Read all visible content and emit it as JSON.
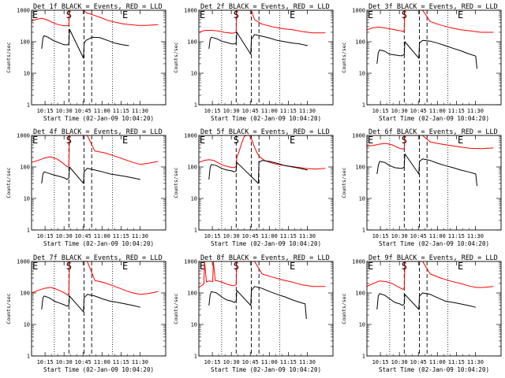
{
  "chart_data": [
    {
      "type": "line",
      "title": "Det 1f BLACK = Events, RED = LLD",
      "xlabel": "Start Time (02-Jan-09 10:04:20)",
      "ylabel": "Counts/sec",
      "yscale": "log",
      "ylim": [
        1,
        1000
      ],
      "xlim_minutes": [
        0,
        106
      ],
      "x_ticks": [
        "10:15",
        "10:30",
        "10:45",
        "11:00",
        "11:15",
        "11:30"
      ],
      "y_ticks": [
        "1",
        "10",
        "100",
        "1000"
      ],
      "markers": [
        "E",
        "S",
        "E"
      ],
      "series": [
        {
          "color": "#ff0000",
          "x": [
            0,
            4,
            8,
            12,
            16,
            20,
            24,
            26,
            28,
            29.5,
            30,
            36,
            41,
            41.5,
            43,
            48,
            54,
            60,
            66,
            72,
            78,
            84,
            90,
            96,
            100
          ],
          "y": [
            460,
            510,
            560,
            500,
            420,
            360,
            330,
            320,
            320,
            330,
            1000,
            1000,
            1000,
            1000,
            840,
            720,
            600,
            480,
            420,
            370,
            350,
            330,
            330,
            340,
            350
          ]
        },
        {
          "color": "#000000",
          "x": [
            8,
            9,
            10,
            13,
            17,
            21,
            24,
            26,
            28,
            29.5,
            30,
            41,
            41.5,
            43,
            48,
            54,
            60,
            66,
            72,
            77
          ],
          "y": [
            60,
            130,
            155,
            140,
            110,
            95,
            85,
            80,
            80,
            85,
            250,
            30,
            90,
            110,
            140,
            135,
            110,
            90,
            80,
            75
          ]
        }
      ]
    },
    {
      "type": "line",
      "title": "Det 2f BLACK = Events, RED = LLD",
      "xlabel": "Start Time (02-Jan-09 10:04:20)",
      "ylabel": "Counts/sec",
      "yscale": "log",
      "ylim": [
        1,
        1000
      ],
      "xlim_minutes": [
        0,
        106
      ],
      "x_ticks": [
        "10:15",
        "10:30",
        "10:45",
        "11:00",
        "11:15",
        "11:30"
      ],
      "y_ticks": [
        "1",
        "10",
        "100",
        "1000"
      ],
      "markers": [
        "E",
        "S",
        "E"
      ],
      "series": [
        {
          "color": "#ff0000",
          "x": [
            0,
            5,
            10,
            15,
            20,
            24,
            26,
            28,
            29.5,
            30,
            35,
            41,
            41.5,
            44,
            50,
            58,
            66,
            74,
            82,
            90,
            100
          ],
          "y": [
            200,
            230,
            230,
            220,
            200,
            190,
            185,
            190,
            200,
            1000,
            1000,
            1000,
            1000,
            500,
            360,
            300,
            260,
            240,
            210,
            190,
            190
          ]
        },
        {
          "color": "#000000",
          "x": [
            8,
            9,
            10,
            14,
            18,
            22,
            26,
            28,
            29.5,
            30,
            41,
            41.5,
            44,
            50,
            56,
            62,
            68,
            74,
            80,
            86
          ],
          "y": [
            60,
            120,
            140,
            125,
            105,
            95,
            85,
            85,
            90,
            200,
            40,
            120,
            170,
            150,
            130,
            110,
            100,
            90,
            85,
            75
          ]
        }
      ]
    },
    {
      "type": "line",
      "title": "Det 3f BLACK = Events, RED = LLD",
      "xlabel": "Start Time (02-Jan-09 10:04:20)",
      "ylabel": "Counts/sec",
      "yscale": "log",
      "ylim": [
        1,
        1000
      ],
      "xlim_minutes": [
        0,
        106
      ],
      "x_ticks": [
        "10:15",
        "10:30",
        "10:45",
        "11:00",
        "11:15",
        "11:30"
      ],
      "y_ticks": [
        "1",
        "10",
        "100",
        "1000"
      ],
      "markers": [
        "E",
        "S",
        "E"
      ],
      "series": [
        {
          "color": "#ff0000",
          "x": [
            0,
            5,
            10,
            15,
            20,
            24,
            27,
            28.5,
            29.5,
            30,
            41,
            41.5,
            44,
            50,
            58,
            66,
            74,
            82,
            90,
            100
          ],
          "y": [
            240,
            280,
            290,
            270,
            250,
            230,
            220,
            210,
            230,
            1000,
            1000,
            1000,
            1000,
            440,
            340,
            280,
            240,
            220,
            200,
            200
          ]
        },
        {
          "color": "#000000",
          "x": [
            8,
            9,
            10,
            14,
            18,
            22,
            26,
            28,
            29.5,
            30,
            41,
            41.5,
            44,
            50,
            56,
            62,
            68,
            74,
            80,
            86,
            87
          ],
          "y": [
            20,
            45,
            55,
            50,
            40,
            38,
            36,
            36,
            40,
            100,
            30,
            90,
            110,
            105,
            90,
            75,
            62,
            52,
            42,
            35,
            14
          ]
        }
      ]
    },
    {
      "type": "line",
      "title": "Det 4f BLACK = Events, RED = LLD",
      "xlabel": "Start Time (02-Jan-09 10:04:20)",
      "ylabel": "Counts/sec",
      "yscale": "log",
      "ylim": [
        1,
        1000
      ],
      "xlim_minutes": [
        0,
        106
      ],
      "x_ticks": [
        "10:15",
        "10:30",
        "10:45",
        "11:00",
        "11:15",
        "11:30"
      ],
      "y_ticks": [
        "1",
        "10",
        "100",
        "1000"
      ],
      "markers": [
        "E",
        "S",
        "E"
      ],
      "series": [
        {
          "color": "#ff0000",
          "x": [
            0,
            5,
            10,
            15,
            20,
            24,
            27,
            28.5,
            29.5,
            30,
            41,
            41.5,
            44,
            50,
            58,
            66,
            74,
            80,
            86,
            92,
            100
          ],
          "y": [
            140,
            160,
            190,
            210,
            180,
            140,
            110,
            100,
            110,
            1000,
            1000,
            1000,
            1000,
            320,
            280,
            220,
            170,
            140,
            120,
            130,
            150
          ]
        },
        {
          "color": "#000000",
          "x": [
            8,
            9,
            10,
            14,
            18,
            22,
            26,
            28,
            29.5,
            30,
            41,
            41.5,
            44,
            50,
            56,
            62,
            68,
            74,
            80,
            86
          ],
          "y": [
            30,
            60,
            70,
            62,
            55,
            50,
            45,
            40,
            45,
            100,
            30,
            70,
            90,
            80,
            70,
            60,
            55,
            50,
            45,
            40
          ]
        }
      ]
    },
    {
      "type": "line",
      "title": "Det 5f BLACK = Events, RED = LLD",
      "xlabel": "Start Time (02-Jan-09 10:04:20)",
      "ylabel": "Counts/sec",
      "yscale": "log",
      "ylim": [
        1,
        1000
      ],
      "xlim_minutes": [
        0,
        106
      ],
      "x_ticks": [
        "10:15",
        "10:30",
        "10:45",
        "11:00",
        "11:15",
        "11:30"
      ],
      "y_ticks": [
        "1",
        "10",
        "100",
        "1000"
      ],
      "markers": [
        "E",
        "S",
        "E"
      ],
      "series": [
        {
          "color": "#ff0000",
          "x": [
            0,
            4,
            8,
            12,
            16,
            20,
            24,
            28,
            29.5,
            30,
            32,
            34,
            36,
            38,
            40,
            42,
            44,
            46,
            48,
            52,
            56,
            62,
            68,
            76,
            84,
            92,
            100
          ],
          "y": [
            140,
            160,
            170,
            160,
            130,
            110,
            100,
            95,
            105,
            200,
            330,
            600,
            950,
            1000,
            1000,
            700,
            420,
            280,
            210,
            160,
            140,
            120,
            110,
            100,
            90,
            85,
            90
          ]
        },
        {
          "color": "#000000",
          "x": [
            8,
            9,
            10,
            14,
            18,
            22,
            26,
            28,
            29.5,
            30,
            47,
            47.5,
            50,
            56,
            62,
            68,
            74,
            80,
            86
          ],
          "y": [
            40,
            100,
            120,
            110,
            90,
            80,
            75,
            70,
            75,
            140,
            30,
            140,
            160,
            150,
            130,
            110,
            100,
            90,
            80
          ]
        }
      ]
    },
    {
      "type": "line",
      "title": "Det 6f BLACK = Events, RED = LLD",
      "xlabel": "Start Time (02-Jan-09 10:04:20)",
      "ylabel": "Counts/sec",
      "yscale": "log",
      "ylim": [
        1,
        1000
      ],
      "xlim_minutes": [
        0,
        106
      ],
      "x_ticks": [
        "10:15",
        "10:30",
        "10:45",
        "11:00",
        "11:15",
        "11:30"
      ],
      "y_ticks": [
        "1",
        "10",
        "100",
        "1000"
      ],
      "markers": [
        "E",
        "S",
        "E"
      ],
      "series": [
        {
          "color": "#ff0000",
          "x": [
            0,
            5,
            10,
            15,
            20,
            24,
            27,
            28.5,
            29.5,
            30,
            41,
            41.5,
            44,
            50,
            58,
            66,
            74,
            82,
            90,
            100
          ],
          "y": [
            460,
            480,
            530,
            560,
            500,
            420,
            380,
            370,
            390,
            1000,
            1000,
            1000,
            1000,
            620,
            540,
            480,
            430,
            390,
            380,
            400
          ]
        },
        {
          "color": "#000000",
          "x": [
            8,
            9,
            10,
            14,
            18,
            22,
            26,
            28,
            29.5,
            30,
            41,
            41.5,
            44,
            50,
            56,
            62,
            68,
            74,
            80,
            86,
            87
          ],
          "y": [
            60,
            110,
            150,
            140,
            110,
            95,
            90,
            90,
            100,
            260,
            60,
            150,
            180,
            160,
            130,
            110,
            95,
            80,
            70,
            60,
            25
          ]
        }
      ]
    },
    {
      "type": "line",
      "title": "Det 7f BLACK = Events, RED = LLD",
      "xlabel": "Start Time (02-Jan-09 10:04:20)",
      "ylabel": "Counts/sec",
      "yscale": "log",
      "ylim": [
        1,
        1000
      ],
      "xlim_minutes": [
        0,
        106
      ],
      "x_ticks": [
        "10:15",
        "10:30",
        "10:45",
        "11:00",
        "11:15",
        "11:30"
      ],
      "y_ticks": [
        "1",
        "10",
        "100",
        "1000"
      ],
      "markers": [
        "E",
        "S",
        "E"
      ],
      "series": [
        {
          "color": "#ff0000",
          "x": [
            0,
            5,
            10,
            15,
            20,
            24,
            27,
            28.5,
            29.5,
            30,
            41,
            41.5,
            44,
            50,
            58,
            66,
            74,
            80,
            86,
            92,
            100
          ],
          "y": [
            100,
            120,
            140,
            150,
            130,
            110,
            95,
            85,
            95,
            1000,
            1000,
            1000,
            1000,
            250,
            210,
            160,
            120,
            100,
            90,
            95,
            110
          ]
        },
        {
          "color": "#000000",
          "x": [
            8,
            9,
            10,
            14,
            18,
            22,
            26,
            28,
            29.5,
            30,
            41,
            41.5,
            44,
            50,
            56,
            62,
            68,
            74,
            80,
            86
          ],
          "y": [
            30,
            70,
            80,
            70,
            55,
            48,
            42,
            38,
            42,
            80,
            25,
            70,
            90,
            80,
            65,
            55,
            50,
            45,
            40,
            35
          ]
        }
      ]
    },
    {
      "type": "line",
      "title": "Det 8f BLACK = Events, RED = LLD",
      "xlabel": "Start Time (02-Jan-09 10:04:20)",
      "ylabel": "Counts/sec",
      "yscale": "log",
      "ylim": [
        1,
        1000
      ],
      "xlim_minutes": [
        0,
        106
      ],
      "x_ticks": [
        "10:15",
        "10:30",
        "10:45",
        "11:00",
        "11:15",
        "11:30"
      ],
      "y_ticks": [
        "1",
        "10",
        "100",
        "1000"
      ],
      "markers": [
        "E",
        "S",
        "E"
      ],
      "series": [
        {
          "color": "#ff0000",
          "x": [
            0,
            3,
            4,
            4.5,
            6,
            8,
            11,
            11.5,
            13,
            17,
            21,
            24,
            27,
            29.5,
            30,
            41,
            41.5,
            44,
            50,
            58,
            66,
            74,
            82,
            90,
            100
          ],
          "y": [
            150,
            180,
            200,
            1000,
            220,
            240,
            230,
            1000,
            250,
            230,
            200,
            180,
            170,
            180,
            1000,
            1000,
            1000,
            1000,
            400,
            320,
            260,
            220,
            180,
            160,
            160
          ]
        },
        {
          "color": "#000000",
          "x": [
            8,
            9,
            10,
            14,
            18,
            22,
            26,
            28,
            29.5,
            30,
            41,
            41.5,
            44,
            50,
            56,
            62,
            68,
            74,
            80,
            84,
            85
          ],
          "y": [
            40,
            90,
            110,
            100,
            75,
            60,
            55,
            50,
            55,
            120,
            40,
            120,
            160,
            140,
            110,
            90,
            75,
            60,
            50,
            45,
            15
          ]
        }
      ]
    },
    {
      "type": "line",
      "title": "Det 9f BLACK = Events, RED = LLD",
      "xlabel": "Start Time (02-Jan-09 10:04:20)",
      "ylabel": "Counts/sec",
      "yscale": "log",
      "ylim": [
        1,
        1000
      ],
      "xlim_minutes": [
        0,
        106
      ],
      "x_ticks": [
        "10:15",
        "10:30",
        "10:45",
        "11:00",
        "11:15",
        "11:30"
      ],
      "y_ticks": [
        "1",
        "10",
        "100",
        "1000"
      ],
      "markers": [
        "E",
        "S",
        "E"
      ],
      "series": [
        {
          "color": "#ff0000",
          "x": [
            0,
            5,
            10,
            15,
            20,
            24,
            27,
            28.5,
            29.5,
            30,
            41,
            41.5,
            44,
            50,
            58,
            66,
            74,
            80,
            86,
            92,
            100
          ],
          "y": [
            160,
            200,
            240,
            230,
            200,
            160,
            140,
            130,
            140,
            1000,
            1000,
            1000,
            1000,
            400,
            300,
            240,
            200,
            170,
            150,
            150,
            160
          ]
        },
        {
          "color": "#000000",
          "x": [
            8,
            9,
            10,
            14,
            18,
            22,
            26,
            28,
            29.5,
            30,
            41,
            41.5,
            44,
            50,
            56,
            62,
            68,
            74,
            80,
            86
          ],
          "y": [
            30,
            80,
            95,
            85,
            65,
            50,
            45,
            40,
            45,
            90,
            30,
            80,
            100,
            90,
            70,
            55,
            50,
            45,
            40,
            35
          ]
        }
      ]
    }
  ]
}
